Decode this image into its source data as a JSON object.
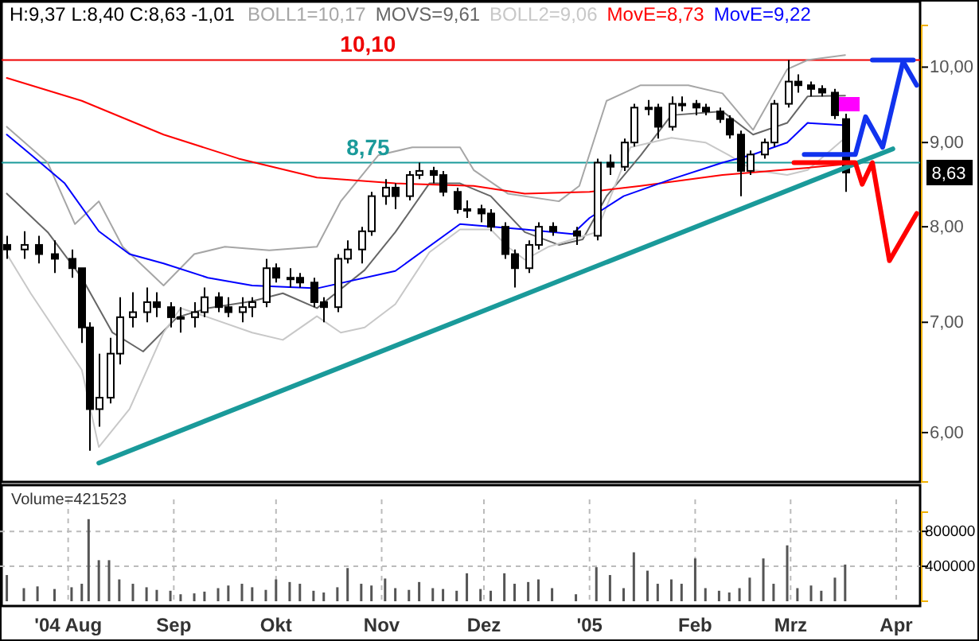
{
  "chart_data": [
    {
      "type": "candlestick",
      "title": "H:9,37 L:8,40 C:8,63 -1,01",
      "legend": "top",
      "log": true,
      "tick_labels": "y",
      "x": [
        "2004-07-14",
        "2004-07-19",
        "2004-07-23",
        "2004-07-28",
        "2004-08-02",
        "2004-08-05",
        "2004-08-07",
        "2004-08-10",
        "2004-08-13",
        "2004-08-16",
        "2004-08-20",
        "2004-08-24",
        "2004-08-27",
        "2004-08-31",
        "2004-09-03",
        "2004-09-07",
        "2004-09-10",
        "2004-09-14",
        "2004-09-17",
        "2004-09-21",
        "2004-09-24",
        "2004-09-28",
        "2004-10-01",
        "2004-10-05",
        "2004-10-08",
        "2004-10-12",
        "2004-10-15",
        "2004-10-19",
        "2004-10-22",
        "2004-10-26",
        "2004-10-29",
        "2004-11-02",
        "2004-11-05",
        "2004-11-09",
        "2004-11-12",
        "2004-11-16",
        "2004-11-19",
        "2004-11-23",
        "2004-11-26",
        "2004-11-30",
        "2004-12-03",
        "2004-12-07",
        "2004-12-10",
        "2004-12-14",
        "2004-12-17",
        "2004-12-21",
        "2004-12-28",
        "2005-01-03",
        "2005-01-07",
        "2005-01-11",
        "2005-01-14",
        "2005-01-18",
        "2005-01-21",
        "2005-01-25",
        "2005-01-28",
        "2005-02-01",
        "2005-02-04",
        "2005-02-08",
        "2005-02-11",
        "2005-02-14",
        "2005-02-17",
        "2005-02-21",
        "2005-02-24",
        "2005-02-28",
        "2005-03-03",
        "2005-03-07",
        "2005-03-10",
        "2005-03-14",
        "2005-03-17"
      ],
      "ohlc": [
        [
          7.8,
          7.9,
          7.65,
          7.75
        ],
        [
          7.75,
          7.95,
          7.65,
          7.8
        ],
        [
          7.8,
          7.9,
          7.6,
          7.7
        ],
        [
          7.7,
          7.85,
          7.5,
          7.65
        ],
        [
          7.65,
          7.75,
          7.45,
          7.55
        ],
        [
          7.55,
          7.55,
          6.8,
          6.95
        ],
        [
          6.95,
          7.0,
          5.85,
          6.2
        ],
        [
          6.2,
          6.7,
          6.05,
          6.3
        ],
        [
          6.3,
          6.85,
          6.25,
          6.7
        ],
        [
          6.7,
          7.25,
          6.6,
          7.05
        ],
        [
          7.05,
          7.3,
          6.95,
          7.1
        ],
        [
          7.1,
          7.35,
          7.0,
          7.2
        ],
        [
          7.2,
          7.3,
          7.05,
          7.15
        ],
        [
          7.15,
          7.2,
          6.95,
          7.05
        ],
        [
          7.05,
          7.15,
          6.9,
          7.05
        ],
        [
          7.05,
          7.2,
          6.95,
          7.1
        ],
        [
          7.1,
          7.35,
          7.05,
          7.25
        ],
        [
          7.25,
          7.3,
          7.1,
          7.15
        ],
        [
          7.15,
          7.25,
          7.05,
          7.1
        ],
        [
          7.1,
          7.25,
          7.0,
          7.15
        ],
        [
          7.15,
          7.25,
          7.05,
          7.2
        ],
        [
          7.2,
          7.65,
          7.15,
          7.55
        ],
        [
          7.55,
          7.6,
          7.4,
          7.45
        ],
        [
          7.45,
          7.55,
          7.35,
          7.45
        ],
        [
          7.45,
          7.5,
          7.35,
          7.4
        ],
        [
          7.4,
          7.45,
          7.15,
          7.2
        ],
        [
          7.2,
          7.25,
          7.0,
          7.15
        ],
        [
          7.15,
          7.7,
          7.1,
          7.65
        ],
        [
          7.65,
          7.85,
          7.6,
          7.75
        ],
        [
          7.75,
          8.0,
          7.6,
          7.95
        ],
        [
          7.95,
          8.4,
          7.9,
          8.35
        ],
        [
          8.35,
          8.55,
          8.25,
          8.45
        ],
        [
          8.45,
          8.5,
          8.2,
          8.35
        ],
        [
          8.35,
          8.65,
          8.3,
          8.6
        ],
        [
          8.6,
          8.75,
          8.55,
          8.65
        ],
        [
          8.65,
          8.7,
          8.5,
          8.6
        ],
        [
          8.6,
          8.65,
          8.35,
          8.4
        ],
        [
          8.4,
          8.45,
          8.15,
          8.2
        ],
        [
          8.2,
          8.3,
          8.1,
          8.2
        ],
        [
          8.2,
          8.25,
          8.05,
          8.15
        ],
        [
          8.15,
          8.2,
          7.95,
          8.0
        ],
        [
          8.0,
          8.05,
          7.65,
          7.7
        ],
        [
          7.7,
          7.75,
          7.35,
          7.55
        ],
        [
          7.55,
          7.85,
          7.5,
          7.8
        ],
        [
          7.8,
          8.05,
          7.75,
          8.0
        ],
        [
          8.0,
          8.05,
          7.9,
          7.95
        ],
        [
          7.95,
          8.0,
          7.8,
          7.9
        ],
        [
          7.9,
          8.8,
          7.85,
          8.75
        ],
        [
          8.75,
          8.85,
          8.6,
          8.7
        ],
        [
          8.7,
          9.05,
          8.65,
          9.0
        ],
        [
          9.0,
          9.5,
          8.95,
          9.45
        ],
        [
          9.45,
          9.55,
          9.35,
          9.45
        ],
        [
          9.45,
          9.5,
          9.05,
          9.2
        ],
        [
          9.2,
          9.6,
          9.15,
          9.5
        ],
        [
          9.5,
          9.6,
          9.4,
          9.5
        ],
        [
          9.5,
          9.55,
          9.35,
          9.45
        ],
        [
          9.45,
          9.5,
          9.35,
          9.4
        ],
        [
          9.4,
          9.45,
          9.25,
          9.3
        ],
        [
          9.3,
          9.35,
          9.05,
          9.1
        ],
        [
          9.1,
          9.15,
          8.35,
          8.65
        ],
        [
          8.65,
          8.9,
          8.6,
          8.85
        ],
        [
          8.85,
          9.05,
          8.8,
          9.0
        ],
        [
          9.0,
          9.55,
          8.95,
          9.5
        ],
        [
          9.5,
          10.1,
          9.45,
          9.8
        ],
        [
          9.8,
          9.9,
          9.65,
          9.75
        ],
        [
          9.75,
          9.8,
          9.6,
          9.7
        ],
        [
          9.7,
          9.75,
          9.6,
          9.65
        ],
        [
          9.65,
          9.7,
          9.3,
          9.35
        ],
        [
          9.3,
          9.37,
          8.4,
          8.63
        ]
      ],
      "series": [
        {
          "type": "line",
          "name": "BOLL1=10,17",
          "color": "#a6a6a6",
          "x": [
            "2004-07-14",
            "2004-07-26",
            "2004-08-03",
            "2004-08-10",
            "2004-08-17",
            "2004-08-29",
            "2004-09-07",
            "2004-09-16",
            "2004-09-29",
            "2004-10-13",
            "2004-10-20",
            "2004-10-31",
            "2004-11-10",
            "2004-11-24",
            "2004-11-28",
            "2004-12-08",
            "2004-12-23",
            "2004-12-29",
            "2005-01-06",
            "2005-01-16",
            "2005-01-30",
            "2005-02-09",
            "2005-02-18",
            "2005-02-28",
            "2005-03-06",
            "2005-03-17"
          ],
          "values": [
            9.2,
            8.75,
            8.03,
            8.29,
            7.78,
            7.37,
            7.7,
            7.78,
            7.74,
            7.78,
            8.29,
            8.84,
            8.94,
            8.94,
            8.66,
            8.38,
            8.29,
            8.47,
            9.54,
            9.75,
            9.75,
            9.64,
            9.16,
            9.97,
            10.1,
            10.17
          ]
        },
        {
          "type": "line",
          "name": "MOVS=9,61",
          "color": "#666666",
          "x": [
            "2004-07-14",
            "2004-07-26",
            "2004-08-05",
            "2004-08-14",
            "2004-08-23",
            "2004-09-02",
            "2004-09-11",
            "2004-09-24",
            "2004-10-03",
            "2004-10-13",
            "2004-10-27",
            "2004-11-05",
            "2004-11-15",
            "2004-11-24",
            "2004-12-03",
            "2004-12-13",
            "2004-12-23",
            "2004-12-30",
            "2005-01-06",
            "2005-01-16",
            "2005-01-25",
            "2005-02-09",
            "2005-02-18",
            "2005-02-28",
            "2005-03-06",
            "2005-03-17"
          ],
          "values": [
            8.38,
            7.94,
            7.45,
            6.9,
            6.72,
            7.05,
            7.14,
            7.21,
            7.29,
            7.14,
            7.53,
            7.94,
            8.5,
            8.5,
            8.35,
            7.94,
            7.8,
            7.86,
            8.35,
            8.84,
            9.35,
            9.4,
            9.1,
            9.25,
            9.6,
            9.61
          ]
        },
        {
          "type": "line",
          "name": "BOLL2=9,06",
          "color": "#c8c8c8",
          "x": [
            "2004-07-14",
            "2004-07-21",
            "2004-08-05",
            "2004-08-10",
            "2004-08-19",
            "2004-08-29",
            "2004-09-03",
            "2004-09-11",
            "2004-09-24",
            "2004-10-03",
            "2004-10-13",
            "2004-10-20",
            "2004-10-27",
            "2004-11-05",
            "2004-11-15",
            "2004-11-24",
            "2004-12-03",
            "2004-12-08",
            "2004-12-13",
            "2004-12-20",
            "2004-12-27",
            "2005-01-03",
            "2005-01-13",
            "2005-01-25",
            "2005-02-04",
            "2005-02-11",
            "2005-02-18",
            "2005-02-28",
            "2005-03-06",
            "2005-03-17"
          ],
          "values": [
            7.7,
            7.29,
            6.55,
            5.88,
            6.2,
            6.9,
            7.14,
            7.05,
            6.9,
            6.83,
            7.06,
            6.9,
            6.95,
            7.18,
            7.72,
            7.97,
            7.97,
            7.78,
            7.64,
            7.78,
            7.86,
            7.94,
            8.94,
            9.06,
            9.0,
            8.84,
            8.66,
            8.6,
            8.66,
            9.06
          ]
        },
        {
          "type": "line",
          "name": "MovE=8,73",
          "color": "#ff0000",
          "x": [
            "2004-07-14",
            "2004-08-05",
            "2004-08-29",
            "2004-09-20",
            "2004-10-13",
            "2004-11-05",
            "2004-11-28",
            "2004-12-13",
            "2005-01-01",
            "2005-01-16",
            "2005-02-09",
            "2005-03-04",
            "2005-03-17"
          ],
          "values": [
            9.85,
            9.54,
            9.1,
            8.8,
            8.57,
            8.5,
            8.47,
            8.38,
            8.4,
            8.47,
            8.6,
            8.68,
            8.73
          ]
        },
        {
          "type": "line",
          "name": "MovE=9,22",
          "color": "#0000ff",
          "x": [
            "2004-07-14",
            "2004-07-21",
            "2004-07-31",
            "2004-08-10",
            "2004-08-19",
            "2004-08-29",
            "2004-09-11",
            "2004-09-24",
            "2004-10-13",
            "2004-11-05",
            "2004-11-24",
            "2004-12-13",
            "2004-12-27",
            "2005-01-01",
            "2005-01-11",
            "2005-01-25",
            "2005-02-09",
            "2005-02-18",
            "2005-02-28",
            "2005-03-06",
            "2005-03-17"
          ],
          "values": [
            9.1,
            8.85,
            8.5,
            7.95,
            7.7,
            7.6,
            7.45,
            7.37,
            7.34,
            7.52,
            8.03,
            7.97,
            7.92,
            8.1,
            8.35,
            8.55,
            8.75,
            8.85,
            9.0,
            9.25,
            9.22
          ]
        },
        {
          "type": "line",
          "color": "#1a9a9a",
          "x": [
            "2004-08-10",
            "2005-03-31"
          ],
          "values": [
            5.75,
            8.92
          ]
        },
        {
          "type": "line",
          "color": "#ff0000",
          "x": [
            "2005-03-02",
            "2005-03-20",
            "2005-03-22",
            "2005-03-25",
            "2005-03-30",
            "2005-04-07"
          ],
          "values": [
            8.75,
            8.75,
            8.49,
            8.75,
            7.63,
            8.15
          ]
        },
        {
          "type": "line",
          "color": "#1133ee",
          "x": [
            "2005-03-05",
            "2005-03-20",
            "2005-03-23",
            "2005-03-28",
            "2005-04-03"
          ],
          "values": [
            8.85,
            8.85,
            9.33,
            8.94,
            10.08
          ]
        },
        {
          "type": "line",
          "color": "#1133ee",
          "x": [
            "2005-03-25",
            "2005-04-06"
          ],
          "values": [
            10.1,
            10.1
          ]
        },
        {
          "type": "line",
          "color": "#1133ee",
          "x": [
            "2005-04-03",
            "2005-04-07"
          ],
          "values": [
            10.08,
            9.75
          ]
        }
      ],
      "ref_lines": [
        {
          "axis": "y",
          "value": 10.1,
          "label": "10,10",
          "color": "#ee0000"
        },
        {
          "axis": "y",
          "value": 8.75,
          "label": "8,75",
          "color": "#1a9a9a"
        }
      ],
      "annotations": [
        "8,63"
      ],
      "xlim": [
        "2004-07-12",
        "2005-04-08"
      ],
      "ylim": [
        5.6,
        10.6
      ],
      "yticks": [
        {
          "value": 6,
          "label": "6,00"
        },
        {
          "value": 7,
          "label": "7,00"
        },
        {
          "value": 8,
          "label": "8,00"
        },
        {
          "value": 9,
          "label": "9,00"
        },
        {
          "value": 10,
          "label": "10,00"
        }
      ]
    },
    {
      "type": "bar",
      "title": "Volume=421523",
      "grid": true,
      "color": "#555555",
      "x": [
        "2004-07-14",
        "2004-07-19",
        "2004-07-23",
        "2004-07-28",
        "2004-08-02",
        "2004-08-05",
        "2004-08-07",
        "2004-08-10",
        "2004-08-13",
        "2004-08-16",
        "2004-08-20",
        "2004-08-24",
        "2004-08-27",
        "2004-08-31",
        "2004-09-03",
        "2004-09-07",
        "2004-09-10",
        "2004-09-14",
        "2004-09-17",
        "2004-09-21",
        "2004-09-24",
        "2004-09-28",
        "2004-10-01",
        "2004-10-05",
        "2004-10-08",
        "2004-10-12",
        "2004-10-15",
        "2004-10-19",
        "2004-10-22",
        "2004-10-26",
        "2004-10-29",
        "2004-11-02",
        "2004-11-05",
        "2004-11-09",
        "2004-11-12",
        "2004-11-16",
        "2004-11-19",
        "2004-11-23",
        "2004-11-26",
        "2004-11-30",
        "2004-12-03",
        "2004-12-07",
        "2004-12-10",
        "2004-12-14",
        "2004-12-17",
        "2004-12-21",
        "2004-12-28",
        "2005-01-03",
        "2005-01-07",
        "2005-01-11",
        "2005-01-14",
        "2005-01-18",
        "2005-01-21",
        "2005-01-25",
        "2005-01-28",
        "2005-02-01",
        "2005-02-04",
        "2005-02-08",
        "2005-02-11",
        "2005-02-14",
        "2005-02-17",
        "2005-02-21",
        "2005-02-24",
        "2005-02-28",
        "2005-03-03",
        "2005-03-07",
        "2005-03-10",
        "2005-03-14",
        "2005-03-17"
      ],
      "values": [
        300000,
        150000,
        170000,
        140000,
        160000,
        200000,
        940000,
        470000,
        470000,
        250000,
        200000,
        160000,
        130000,
        120000,
        80000,
        90000,
        110000,
        150000,
        180000,
        200000,
        160000,
        130000,
        250000,
        220000,
        200000,
        120000,
        100000,
        160000,
        380000,
        200000,
        180000,
        260000,
        150000,
        130000,
        220000,
        150000,
        140000,
        120000,
        320000,
        140000,
        120000,
        320000,
        200000,
        220000,
        250000,
        150000,
        80000,
        390000,
        300000,
        150000,
        560000,
        350000,
        200000,
        250000,
        200000,
        490000,
        150000,
        120000,
        100000,
        150000,
        270000,
        490000,
        200000,
        640000,
        150000,
        180000,
        120000,
        270000,
        420000
      ],
      "xlim": [
        "2004-07-12",
        "2005-04-08"
      ],
      "ylim": [
        0,
        1020000
      ],
      "yticks": [
        400000,
        800000
      ],
      "xticks": [
        {
          "value": "2004-08-01",
          "label": "'04 Aug"
        },
        {
          "value": "2004-09-01",
          "label": "Sep"
        },
        {
          "value": "2004-10-01",
          "label": "Okt"
        },
        {
          "value": "2004-11-01",
          "label": "Nov"
        },
        {
          "value": "2004-12-01",
          "label": "Dez"
        },
        {
          "value": "2005-01-01",
          "label": "'05"
        },
        {
          "value": "2005-02-01",
          "label": "Feb"
        },
        {
          "value": "2005-03-01",
          "label": "Mrz"
        },
        {
          "value": "2005-04-01",
          "label": "Apr"
        }
      ]
    }
  ]
}
